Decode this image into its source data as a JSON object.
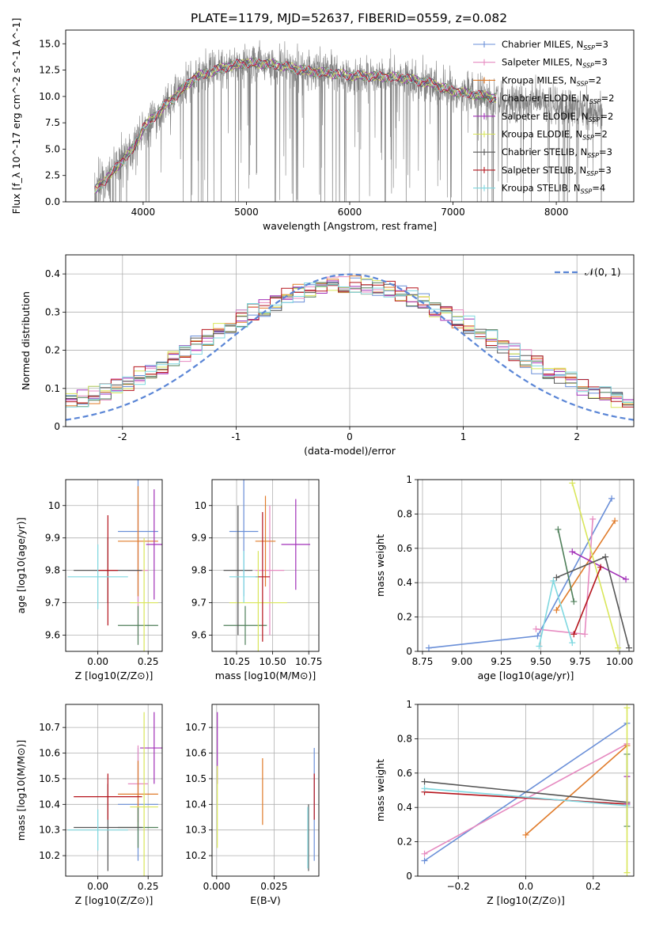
{
  "figure": {
    "title": "PLATE=1179, MJD=52637, FIBERID=0559, z=0.082"
  },
  "series": [
    {
      "name": "Chabrier MILES",
      "nssp": "3",
      "color": "#6a8fd8"
    },
    {
      "name": "Salpeter MILES",
      "nssp": "3",
      "color": "#e68ac0"
    },
    {
      "name": "Kroupa MILES",
      "nssp": "2",
      "color": "#e07b2a"
    },
    {
      "name": "Chabrier ELODIE",
      "nssp": "2",
      "color": "#4f7f5a"
    },
    {
      "name": "Salpeter ELODIE",
      "nssp": "2",
      "color": "#a230b8"
    },
    {
      "name": "Kroupa ELODIE",
      "nssp": "2",
      "color": "#d9e65a"
    },
    {
      "name": "Chabrier STELIB",
      "nssp": "3",
      "color": "#555555"
    },
    {
      "name": "Salpeter STELIB",
      "nssp": "3",
      "color": "#b5141c"
    },
    {
      "name": "Kroupa STELIB",
      "nssp": "4",
      "color": "#7fd8e0"
    }
  ],
  "chart_data": [
    {
      "id": "spectrum",
      "type": "line",
      "xlabel": "wavelength [Angstrom, rest frame]",
      "ylabel": "Flux [f_λ 10^-17 erg cm^-2 s^-1 A^-1]",
      "xlim": [
        3250,
        8750
      ],
      "ylim": [
        0,
        16.3
      ],
      "xticks": [
        4000,
        5000,
        6000,
        7000,
        8000
      ],
      "yticks": [
        0.0,
        2.5,
        5.0,
        7.5,
        10.0,
        12.5,
        15.0
      ],
      "data_color": "#808080",
      "data_range": [
        3530,
        8450
      ],
      "continuum": {
        "x": [
          3530,
          3700,
          3900,
          4000,
          4200,
          4500,
          4800,
          5000,
          5300,
          5600,
          6000,
          6500,
          6800,
          7000,
          7200,
          7400,
          7600,
          7800,
          8000,
          8200,
          8450
        ],
        "y": [
          1.0,
          2.8,
          5.0,
          7.0,
          9.0,
          11.8,
          12.8,
          13.2,
          13.0,
          12.4,
          12.0,
          11.8,
          11.2,
          10.5,
          10.2,
          9.9,
          9.6,
          9.6,
          9.3,
          8.9,
          8.6
        ]
      },
      "model_range": [
        3530,
        7420
      ],
      "grid": false,
      "legend_position": "top-right"
    },
    {
      "id": "residuals",
      "type": "step",
      "xlabel": "(data-model)/error",
      "ylabel": "Normed distribution",
      "xlim": [
        -2.5,
        2.5
      ],
      "ylim": [
        0,
        0.45
      ],
      "xticks": [
        -2,
        -1,
        0,
        1,
        2
      ],
      "yticks": [
        0.0,
        0.1,
        0.2,
        0.3,
        0.4
      ],
      "bin_width": 0.1,
      "gaussian": {
        "label": "𝒩(0, 1)",
        "mu": 0,
        "sigma": 1,
        "color": "#5b86d6"
      },
      "grid": true,
      "legend_position": "top-right"
    },
    {
      "id": "age-vs-Z",
      "type": "errorbar",
      "xlabel": "Z [log10(Z/Z⊙)]",
      "ylabel": "age [log10(age/yr)]",
      "xlim": [
        -0.16,
        0.32
      ],
      "ylim": [
        9.55,
        10.08
      ],
      "xticks": [
        0.0,
        0.25
      ],
      "xticklabels": [
        "0.00",
        "0.25"
      ],
      "yticks": [
        9.6,
        9.7,
        9.8,
        9.9,
        10.0
      ],
      "points": [
        {
          "series": 0,
          "x": 0.2,
          "y": 9.92,
          "xerr": 0.1,
          "yerr": 0.22
        },
        {
          "series": 1,
          "x": 0.2,
          "y": 9.8,
          "xerr": 0.05,
          "yerr": 0.2
        },
        {
          "series": 2,
          "x": 0.2,
          "y": 9.89,
          "xerr": 0.1,
          "yerr": 0.17
        },
        {
          "series": 3,
          "x": 0.2,
          "y": 9.63,
          "xerr": 0.1,
          "yerr": 0.06
        },
        {
          "series": 4,
          "x": 0.28,
          "y": 9.88,
          "xerr": 0.04,
          "yerr": 0.17
        },
        {
          "series": 5,
          "x": 0.23,
          "y": 9.7,
          "xerr": 0.07,
          "yerr": 0.2
        },
        {
          "series": 6,
          "x": 0.05,
          "y": 9.8,
          "xerr": 0.17,
          "yerr": 0.1
        },
        {
          "series": 7,
          "x": 0.05,
          "y": 9.8,
          "xerr": 0.05,
          "yerr": 0.17
        },
        {
          "series": 8,
          "x": 0.0,
          "y": 9.78,
          "xerr": 0.15,
          "yerr": 0.1
        }
      ],
      "grid": true
    },
    {
      "id": "age-vs-mass",
      "type": "errorbar",
      "xlabel": "mass [log10(M/M⊙)]",
      "ylabel": "",
      "xlim": [
        10.08,
        10.82
      ],
      "ylim": [
        9.55,
        10.08
      ],
      "xticks": [
        10.25,
        10.5,
        10.75
      ],
      "xticklabels": [
        "10.25",
        "10.50",
        "10.75"
      ],
      "yticks": [
        9.6,
        9.7,
        9.8,
        9.9,
        10.0
      ],
      "points": [
        {
          "series": 0,
          "x": 10.3,
          "y": 9.92,
          "xerr": 0.1,
          "yerr": 0.2
        },
        {
          "series": 1,
          "x": 10.48,
          "y": 9.8,
          "xerr": 0.1,
          "yerr": 0.2
        },
        {
          "series": 2,
          "x": 10.45,
          "y": 9.89,
          "xerr": 0.07,
          "yerr": 0.14
        },
        {
          "series": 3,
          "x": 10.31,
          "y": 9.63,
          "xerr": 0.15,
          "yerr": 0.06
        },
        {
          "series": 4,
          "x": 10.66,
          "y": 9.88,
          "xerr": 0.1,
          "yerr": 0.14
        },
        {
          "series": 5,
          "x": 10.4,
          "y": 9.7,
          "xerr": 0.2,
          "yerr": 0.16
        },
        {
          "series": 6,
          "x": 10.26,
          "y": 9.8,
          "xerr": 0.1,
          "yerr": 0.2
        },
        {
          "series": 7,
          "x": 10.43,
          "y": 9.78,
          "xerr": 0.05,
          "yerr": 0.2
        },
        {
          "series": 8,
          "x": 10.3,
          "y": 9.78,
          "xerr": 0.1,
          "yerr": 0.08
        }
      ],
      "grid": true
    },
    {
      "id": "weight-vs-age",
      "type": "line",
      "xlabel": "age [log10(age/yr)]",
      "ylabel": "mass weight",
      "xlim": [
        8.72,
        10.09
      ],
      "ylim": [
        0,
        1.0
      ],
      "xticks": [
        8.75,
        9.0,
        9.25,
        9.5,
        9.75,
        10.0
      ],
      "xticklabels": [
        "8.75",
        "9.00",
        "9.25",
        "9.50",
        "9.75",
        "10.00"
      ],
      "yticks": [
        0.0,
        0.2,
        0.4,
        0.6,
        0.8,
        1.0
      ],
      "lines": [
        {
          "series": 0,
          "x": [
            8.79,
            9.48,
            9.95
          ],
          "y": [
            0.02,
            0.09,
            0.89
          ]
        },
        {
          "series": 1,
          "x": [
            9.47,
            9.78,
            9.83
          ],
          "y": [
            0.13,
            0.1,
            0.77
          ]
        },
        {
          "series": 2,
          "x": [
            9.6,
            9.97
          ],
          "y": [
            0.24,
            0.76
          ]
        },
        {
          "series": 3,
          "x": [
            9.61,
            9.71
          ],
          "y": [
            0.71,
            0.29
          ]
        },
        {
          "series": 4,
          "x": [
            9.7,
            10.04
          ],
          "y": [
            0.58,
            0.42
          ]
        },
        {
          "series": 5,
          "x": [
            9.7,
            9.99
          ],
          "y": [
            0.98,
            0.02
          ]
        },
        {
          "series": 6,
          "x": [
            9.6,
            9.91,
            10.06
          ],
          "y": [
            0.43,
            0.55,
            0.02
          ]
        },
        {
          "series": 7,
          "x": [
            9.71,
            9.88
          ],
          "y": [
            0.1,
            0.49
          ]
        },
        {
          "series": 8,
          "x": [
            9.49,
            9.58,
            9.7
          ],
          "y": [
            0.03,
            0.41,
            0.05
          ]
        }
      ],
      "grid": true
    },
    {
      "id": "mass-vs-Z",
      "type": "errorbar",
      "xlabel": "Z [log10(Z/Z⊙)]",
      "ylabel": "mass [log10(M/M⊙)]",
      "xlim": [
        -0.16,
        0.32
      ],
      "ylim": [
        10.12,
        10.79
      ],
      "xticks": [
        0.0,
        0.25
      ],
      "xticklabels": [
        "0.00",
        "0.25"
      ],
      "yticks": [
        10.2,
        10.3,
        10.4,
        10.5,
        10.6,
        10.7
      ],
      "points": [
        {
          "series": 0,
          "x": 0.2,
          "y": 10.4,
          "xerr": 0.1,
          "yerr": 0.22
        },
        {
          "series": 1,
          "x": 0.2,
          "y": 10.48,
          "xerr": 0.05,
          "yerr": 0.15
        },
        {
          "series": 2,
          "x": 0.2,
          "y": 10.44,
          "xerr": 0.1,
          "yerr": 0.13
        },
        {
          "series": 3,
          "x": 0.2,
          "y": 10.31,
          "xerr": 0.1,
          "yerr": 0.08
        },
        {
          "series": 4,
          "x": 0.28,
          "y": 10.62,
          "xerr": 0.07,
          "yerr": 0.14
        },
        {
          "series": 5,
          "x": 0.23,
          "y": 10.39,
          "xerr": 0.07,
          "yerr": 0.37
        },
        {
          "series": 6,
          "x": 0.05,
          "y": 10.31,
          "xerr": 0.17,
          "yerr": 0.17
        },
        {
          "series": 7,
          "x": 0.05,
          "y": 10.43,
          "xerr": 0.17,
          "yerr": 0.09
        },
        {
          "series": 8,
          "x": 0.0,
          "y": 10.3,
          "xerr": 0.15,
          "yerr": 0.08
        }
      ],
      "grid": true
    },
    {
      "id": "mass-vs-ebv",
      "type": "errorbar",
      "xlabel": "E(B-V)",
      "ylabel": "",
      "xlim": [
        -0.002,
        0.0445
      ],
      "ylim": [
        10.12,
        10.79
      ],
      "xticks": [
        0.0,
        0.025
      ],
      "xticklabels": [
        "0.000",
        "0.025"
      ],
      "yticks": [
        10.2,
        10.3,
        10.4,
        10.5,
        10.6,
        10.7
      ],
      "points": [
        {
          "series": 0,
          "x": 0.0425,
          "y": 10.4,
          "xerr": 0,
          "yerr": 0.22
        },
        {
          "series": 2,
          "x": 0.02,
          "y": 10.45,
          "xerr": 0,
          "yerr": 0.13
        },
        {
          "series": 4,
          "x": 0.0003,
          "y": 10.62,
          "xerr": 0,
          "yerr": 0.14
        },
        {
          "series": 5,
          "x": 0.0003,
          "y": 10.39,
          "xerr": 0,
          "yerr": 0.16
        },
        {
          "series": 6,
          "x": 0.04,
          "y": 10.27,
          "xerr": 0,
          "yerr": 0.13
        },
        {
          "series": 7,
          "x": 0.0425,
          "y": 10.43,
          "xerr": 0,
          "yerr": 0.09
        },
        {
          "series": 8,
          "x": 0.0397,
          "y": 10.27,
          "xerr": 0,
          "yerr": 0.12
        }
      ],
      "grid": true
    },
    {
      "id": "weight-vs-Z",
      "type": "line",
      "xlabel": "Z [log10(Z/Z⊙)]",
      "ylabel": "mass weight",
      "xlim": [
        -0.32,
        0.32
      ],
      "ylim": [
        0,
        1.0
      ],
      "xticks": [
        -0.2,
        0.0,
        0.2
      ],
      "xticklabels": [
        "−0.2",
        "0.0",
        "0.2"
      ],
      "yticks": [
        0.0,
        0.2,
        0.4,
        0.6,
        0.8,
        1.0
      ],
      "lines": [
        {
          "series": 0,
          "x": [
            -0.3,
            0.3
          ],
          "y": [
            0.09,
            0.89
          ]
        },
        {
          "series": 1,
          "x": [
            -0.3,
            0.3
          ],
          "y": [
            0.13,
            0.77
          ]
        },
        {
          "series": 2,
          "x": [
            0.0,
            0.3
          ],
          "y": [
            0.24,
            0.76
          ]
        },
        {
          "series": 6,
          "x": [
            -0.3,
            0.3
          ],
          "y": [
            0.55,
            0.43
          ]
        },
        {
          "series": 7,
          "x": [
            -0.3,
            0.3
          ],
          "y": [
            0.49,
            0.42
          ]
        },
        {
          "series": 8,
          "x": [
            -0.3,
            0.3
          ],
          "y": [
            0.51,
            0.41
          ]
        },
        {
          "series": 3,
          "x": [
            0.3,
            0.3
          ],
          "y": [
            0.71,
            0.29
          ]
        },
        {
          "series": 4,
          "x": [
            0.3,
            0.3
          ],
          "y": [
            0.58,
            0.42
          ]
        },
        {
          "series": 5,
          "x": [
            0.3,
            0.3
          ],
          "y": [
            0.98,
            0.02
          ]
        }
      ],
      "grid": true
    }
  ]
}
